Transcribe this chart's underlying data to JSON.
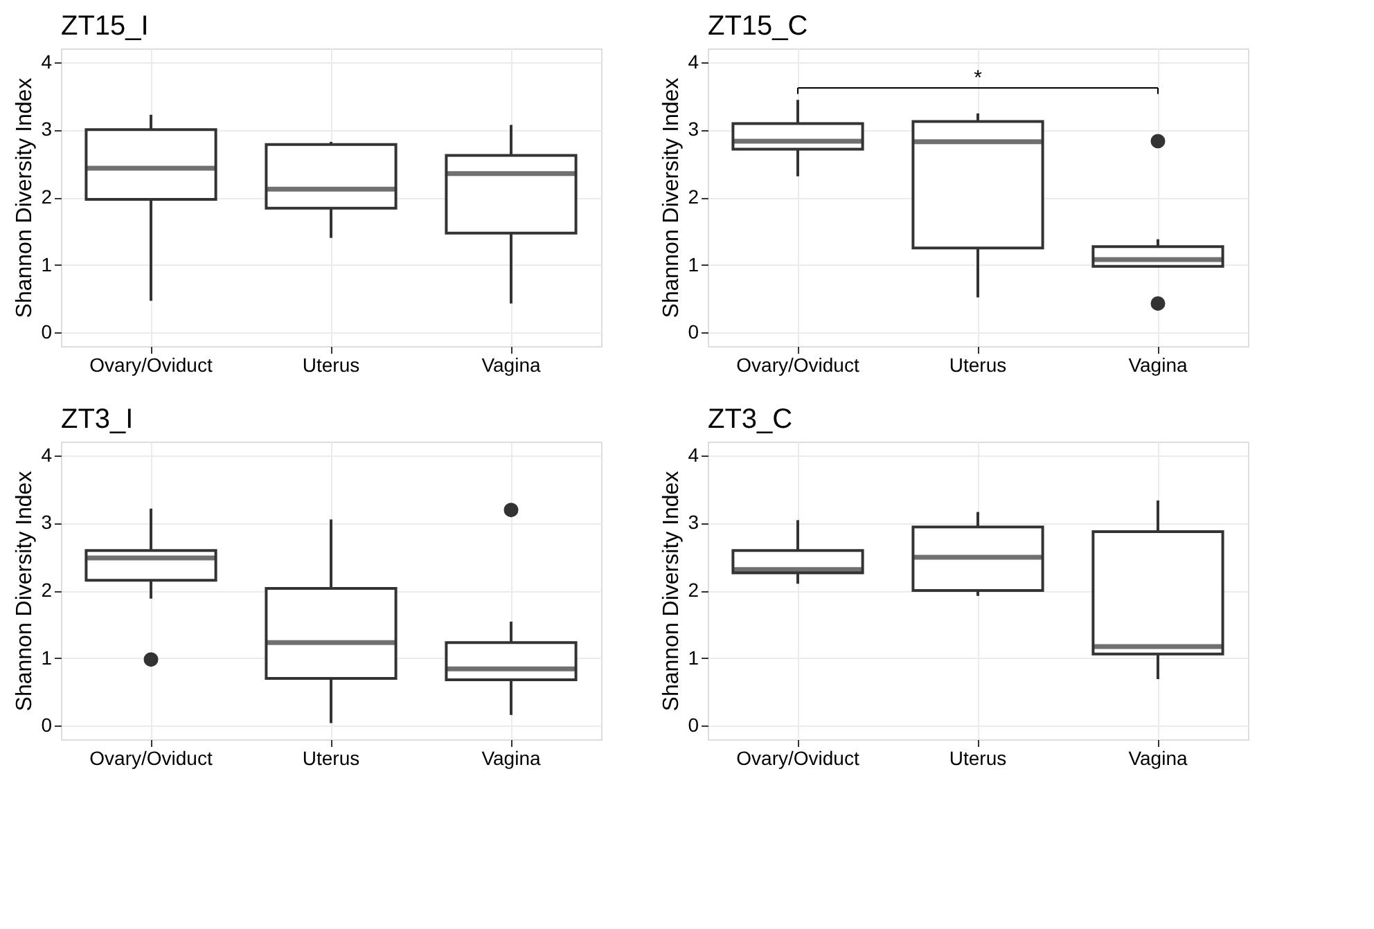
{
  "chart_data": [
    {
      "type": "box",
      "title": "ZT15_I",
      "ylabel": "Shannon Diversity Index",
      "categories": [
        "Ovary/Oviduct",
        "Uterus",
        "Vagina"
      ],
      "ylim": [
        -0.2,
        4.2
      ],
      "yticks": [
        0,
        1,
        2,
        3,
        4
      ],
      "grid": true,
      "boxes": [
        {
          "low": 0.47,
          "q1": 1.97,
          "median": 2.43,
          "q3": 3.0,
          "high": 3.22
        },
        {
          "low": 1.4,
          "q1": 1.84,
          "median": 2.12,
          "q3": 2.78,
          "high": 2.82
        },
        {
          "low": 0.43,
          "q1": 1.47,
          "median": 2.35,
          "q3": 2.62,
          "high": 3.07
        }
      ]
    },
    {
      "type": "box",
      "title": "ZT15_C",
      "ylabel": "Shannon Diversity Index",
      "categories": [
        "Ovary/Oviduct",
        "Uterus",
        "Vagina"
      ],
      "ylim": [
        -0.2,
        4.2
      ],
      "yticks": [
        0,
        1,
        2,
        3,
        4
      ],
      "grid": true,
      "annotations": [
        "*"
      ],
      "boxes": [
        {
          "low": 2.31,
          "q1": 2.71,
          "median": 2.83,
          "q3": 3.09,
          "high": 3.44
        },
        {
          "low": 0.52,
          "q1": 1.25,
          "median": 2.82,
          "q3": 3.12,
          "high": 3.24
        },
        {
          "low": 0.98,
          "q1": 0.98,
          "median": 1.08,
          "q3": 1.27,
          "high": 1.38,
          "outliers": [
            2.83,
            0.43
          ]
        }
      ]
    },
    {
      "type": "box",
      "title": "ZT3_I",
      "ylabel": "Shannon Diversity Index",
      "categories": [
        "Ovary/Oviduct",
        "Uterus",
        "Vagina"
      ],
      "ylim": [
        -0.2,
        4.2
      ],
      "yticks": [
        0,
        1,
        2,
        3,
        4
      ],
      "grid": true,
      "boxes": [
        {
          "low": 1.88,
          "q1": 2.15,
          "median": 2.48,
          "q3": 2.59,
          "high": 3.21,
          "outliers": [
            0.98
          ]
        },
        {
          "low": 0.04,
          "q1": 0.7,
          "median": 1.23,
          "q3": 2.03,
          "high": 3.05
        },
        {
          "low": 0.16,
          "q1": 0.68,
          "median": 0.84,
          "q3": 1.23,
          "high": 1.54,
          "outliers": [
            3.19
          ]
        }
      ]
    },
    {
      "type": "box",
      "title": "ZT3_C",
      "ylabel": "Shannon Diversity Index",
      "categories": [
        "Ovary/Oviduct",
        "Uterus",
        "Vagina"
      ],
      "ylim": [
        -0.2,
        4.2
      ],
      "yticks": [
        0,
        1,
        2,
        3,
        4
      ],
      "grid": true,
      "boxes": [
        {
          "low": 2.1,
          "q1": 2.26,
          "median": 2.31,
          "q3": 2.59,
          "high": 3.04
        },
        {
          "low": 1.92,
          "q1": 2.0,
          "median": 2.49,
          "q3": 2.94,
          "high": 3.16
        },
        {
          "low": 0.69,
          "q1": 1.06,
          "median": 1.17,
          "q3": 2.87,
          "high": 3.33
        }
      ]
    }
  ]
}
